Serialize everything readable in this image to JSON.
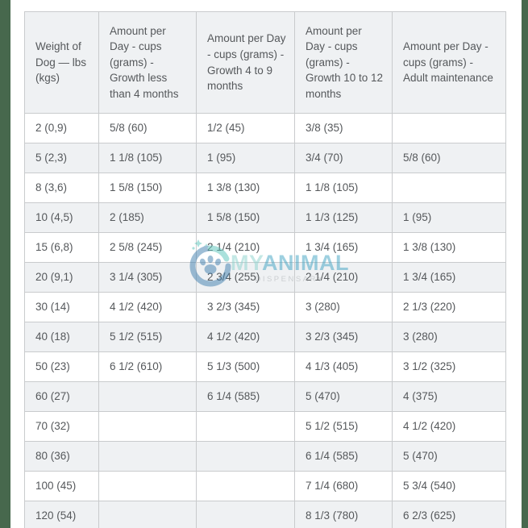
{
  "theme": {
    "page_bg": "#ffffff",
    "side_bar_green": "#47684d",
    "table_border": "#c9cbcd",
    "stripe_bg": "#eff1f3",
    "row_bg": "#ffffff",
    "text_color": "#55585b"
  },
  "chart_data": {
    "type": "table",
    "columns": [
      "Weight of Dog — lbs (kgs)",
      "Amount per Day - cups (grams) - Growth less than 4 months",
      "Amount per Day - cups (grams) - Growth 4 to 9 months",
      "Amount per Day - cups (grams) - Growth 10 to 12 months",
      "Amount per Day - cups (grams) - Adult maintenance"
    ],
    "rows": [
      [
        "2 (0,9)",
        "5/8 (60)",
        "1/2 (45)",
        "3/8 (35)",
        ""
      ],
      [
        "5 (2,3)",
        "1 1/8 (105)",
        "1 (95)",
        "3/4 (70)",
        "5/8 (60)"
      ],
      [
        "8 (3,6)",
        "1 5/8 (150)",
        "1 3/8 (130)",
        "1 1/8 (105)",
        ""
      ],
      [
        "10 (4,5)",
        "2 (185)",
        "1 5/8 (150)",
        "1 1/3 (125)",
        "1 (95)"
      ],
      [
        "15 (6,8)",
        "2 5/8 (245)",
        "2 1/4 (210)",
        "1 3/4 (165)",
        "1 3/8 (130)"
      ],
      [
        "20 (9,1)",
        "3 1/4 (305)",
        "2 3/4 (255)",
        "2 1/4 (210)",
        "1 3/4 (165)"
      ],
      [
        "30 (14)",
        "4 1/2 (420)",
        "3 2/3 (345)",
        "3 (280)",
        "2 1/3 (220)"
      ],
      [
        "40 (18)",
        "5 1/2 (515)",
        "4 1/2 (420)",
        "3 2/3 (345)",
        "3 (280)"
      ],
      [
        "50 (23)",
        "6 1/2 (610)",
        "5 1/3 (500)",
        "4 1/3 (405)",
        "3 1/2 (325)"
      ],
      [
        "60 (27)",
        "",
        "6 1/4 (585)",
        "5 (470)",
        "4 (375)"
      ],
      [
        "70 (32)",
        "",
        "",
        "5 1/2 (515)",
        "4 1/2 (420)"
      ],
      [
        "80 (36)",
        "",
        "",
        "6 1/4 (585)",
        "5 (470)"
      ],
      [
        "100 (45)",
        "",
        "",
        "7 1/4 (680)",
        "5 3/4 (540)"
      ],
      [
        "120 (54)",
        "",
        "",
        "8 1/3 (780)",
        "6 2/3 (625)"
      ]
    ],
    "layout_hints": {
      "striped_rows": "even rows (2nd, 4th, ...) and header are light gray",
      "grid": true
    }
  },
  "watermark": {
    "brand_part1": "MY",
    "brand_part2": "ANIMAL",
    "subtitle": "DISPENSARY",
    "light_teal": "#8ad2cd",
    "teal": "#57c4ba",
    "blue": "#3f7fae",
    "text_blue": "#3fa3c2",
    "gray": "#a9adb0"
  }
}
